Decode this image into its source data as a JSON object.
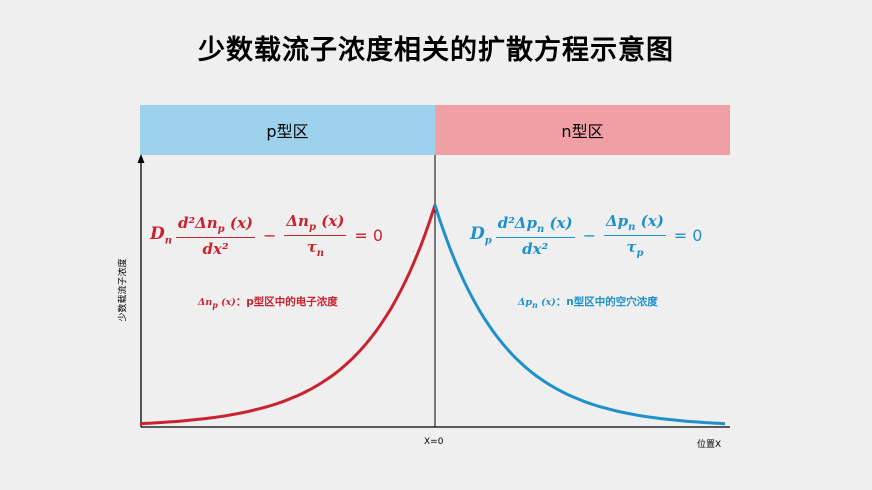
{
  "title": "少数载流子浓度相关的扩散方程示意图",
  "regions": {
    "p": "p型区",
    "n": "n型区"
  },
  "y_axis_label": "少数载流子浓度",
  "x_axis": {
    "origin_label": "X=0",
    "end_label": "位置X"
  },
  "equations": {
    "left": {
      "coef": "D",
      "coef_sub": "n",
      "num1": "d²Δn",
      "num1_sub": "p",
      "num1_arg": "(x)",
      "den1": "dx²",
      "minus": "−",
      "num2": "Δn",
      "num2_sub": "p",
      "num2_arg": "(x)",
      "den2": "τ",
      "den2_sub": "n",
      "rhs": "= 0"
    },
    "right": {
      "coef": "D",
      "coef_sub": "p",
      "num1": "d²Δp",
      "num1_sub": "n",
      "num1_arg": "(x)",
      "den1": "dx²",
      "minus": "−",
      "num2": "Δp",
      "num2_sub": "n",
      "num2_arg": "(x)",
      "den2": "τ",
      "den2_sub": "p",
      "rhs": "= 0"
    }
  },
  "notes": {
    "left": {
      "sym": "Δn",
      "sub": "p",
      "arg": "(x)",
      "text": "：p型区中的电子浓度"
    },
    "right": {
      "sym": "Δp",
      "sub": "n",
      "arg": "(x)",
      "text": "：n型区中的空穴浓度"
    }
  },
  "colors": {
    "electron_curve": "#c9232f",
    "hole_curve": "#1e90cc",
    "p_region": "#9dd1ec",
    "n_region": "#f09fa5"
  }
}
